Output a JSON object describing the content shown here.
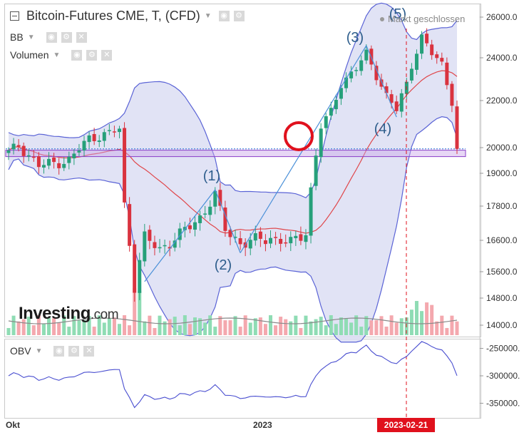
{
  "header": {
    "title": "Bitcoin-Futures CME, T, (CFD)",
    "market_status": "Markt geschlossen",
    "indicators": [
      "BB",
      "Volumen"
    ],
    "oscillator_label": "OBV"
  },
  "logo": {
    "main": "Investing",
    "suffix": ".com"
  },
  "colors": {
    "up": "#26a07a",
    "down": "#d9333f",
    "bb_fill": "#d9dcf2",
    "bb_line": "#5a63d6",
    "mid_line": "#e0464a",
    "wave_line": "#4a90d8",
    "accent": "#e0111d",
    "volume_up": "#8fdcb4",
    "volume_down": "#f4a8ae",
    "obv": "#4a4fd0"
  },
  "chart_data": [
    {
      "type": "candlestick",
      "title": "Bitcoin-Futures CME, T, (CFD)",
      "y_ticks": [
        "26000.0",
        "24000.0",
        "22000.0",
        "20000.0",
        "19000.0",
        "17800.0",
        "16600.0",
        "15600.0",
        "14800.0",
        "14000.0"
      ],
      "x_ticks": [
        "Okt",
        "2023"
      ],
      "highlighted_date": "2023-02-21",
      "current_price_line": 19950,
      "support_band": [
        19650,
        19900
      ],
      "wave_labels": [
        "(1)",
        "(2)",
        "(3)",
        "(4)",
        "(5)"
      ],
      "wave_points": [
        {
          "label": "(1)",
          "x": 41,
          "y": 18400
        },
        {
          "label": "(2)",
          "x": 46,
          "y": 16200
        },
        {
          "label": "(3)",
          "x": 71,
          "y": 24600
        },
        {
          "label": "(4)",
          "x": 77,
          "y": 21300
        },
        {
          "label": "(5)",
          "x": 82,
          "y": 25400
        }
      ],
      "bands": [
        "upper",
        "middle",
        "lower"
      ],
      "series": [
        {
          "name": "BB",
          "values": [
            "upper",
            "middle",
            "lower"
          ]
        },
        {
          "name": "Volumen",
          "values": []
        }
      ]
    },
    {
      "type": "line",
      "title": "OBV",
      "y_ticks": [
        "-250000.",
        "-300000.",
        "-350000."
      ],
      "ylim": [
        -365000,
        -235000
      ]
    }
  ]
}
